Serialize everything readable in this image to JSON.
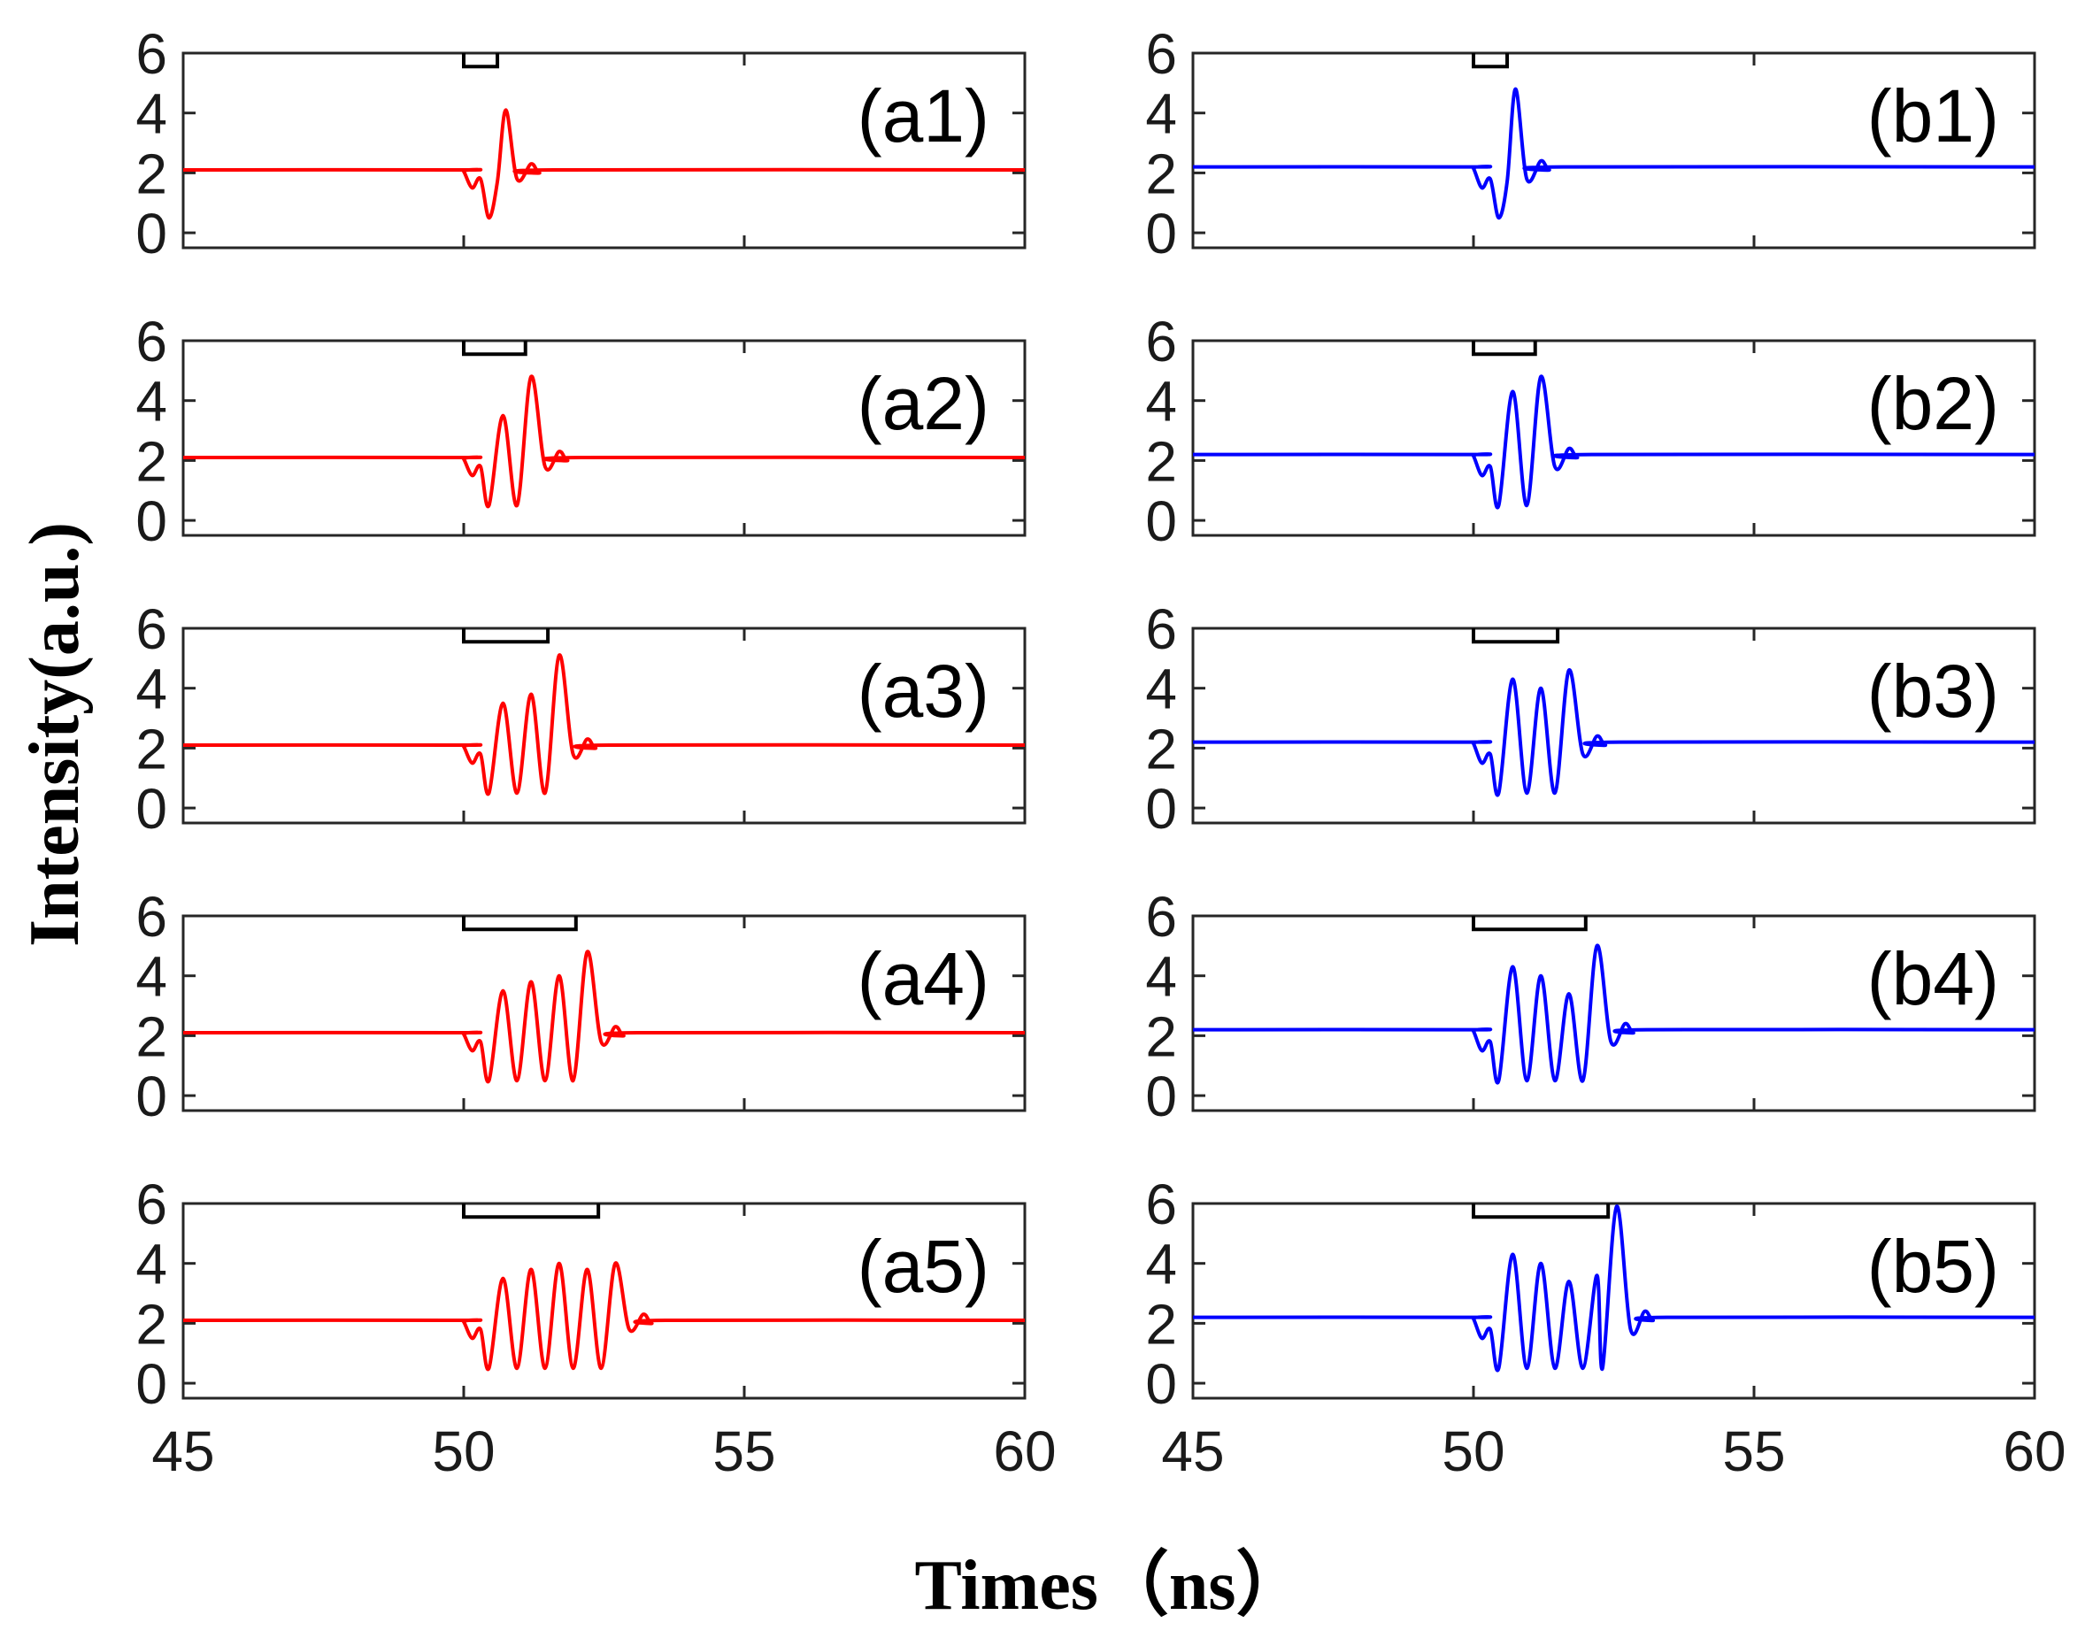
{
  "figure": {
    "ylabel": "Intensity(a.u.)",
    "xlabel": "Times（ns）",
    "colors": {
      "a": "#ff0000",
      "b": "#0000ff",
      "axis": "#262626",
      "marker": "#000000"
    }
  },
  "chart_data": [
    {
      "type": "line",
      "label": "(a1)",
      "series_color": "#ff0000",
      "xlim": [
        45,
        60
      ],
      "ylim": [
        -0.5,
        6
      ],
      "xticks": [
        "45",
        "50",
        "55",
        "60"
      ],
      "yticks": [
        "0",
        "2",
        "4",
        "6"
      ],
      "xlabel": "Times（ns）",
      "ylabel": "Intensity(a.u.)",
      "baseline": 2.1,
      "pulse_window": [
        50,
        50.6
      ],
      "peaks": [
        {
          "x": 50.15,
          "y": 1.5
        },
        {
          "x": 50.3,
          "y": 1.8
        },
        {
          "x": 50.45,
          "y": 0.5
        },
        {
          "x": 50.6,
          "y": 1.7
        },
        {
          "x": 50.75,
          "y": 4.1
        },
        {
          "x": 50.95,
          "y": 1.8
        },
        {
          "x": 51.2,
          "y": 2.3
        },
        {
          "x": 51.35,
          "y": 2.0
        },
        {
          "x": 51.6,
          "y": 2.1
        }
      ]
    },
    {
      "type": "line",
      "label": "(a2)",
      "series_color": "#ff0000",
      "xlim": [
        45,
        60
      ],
      "ylim": [
        -0.5,
        6
      ],
      "xticks": [
        "45",
        "50",
        "55",
        "60"
      ],
      "yticks": [
        "0",
        "2",
        "4",
        "6"
      ],
      "xlabel": "Times（ns）",
      "ylabel": "Intensity(a.u.)",
      "baseline": 2.1,
      "pulse_window": [
        50,
        51.1
      ],
      "peaks": [
        {
          "x": 50.15,
          "y": 1.5
        },
        {
          "x": 50.3,
          "y": 1.8
        },
        {
          "x": 50.45,
          "y": 0.5
        },
        {
          "x": 50.7,
          "y": 3.5
        },
        {
          "x": 50.95,
          "y": 0.5
        },
        {
          "x": 51.2,
          "y": 4.8
        },
        {
          "x": 51.45,
          "y": 1.8
        },
        {
          "x": 51.7,
          "y": 2.3
        },
        {
          "x": 51.85,
          "y": 2.0
        },
        {
          "x": 52.1,
          "y": 2.1
        }
      ]
    },
    {
      "type": "line",
      "label": "(a3)",
      "series_color": "#ff0000",
      "xlim": [
        45,
        60
      ],
      "ylim": [
        -0.5,
        6
      ],
      "xticks": [
        "45",
        "50",
        "55",
        "60"
      ],
      "yticks": [
        "0",
        "2",
        "4",
        "6"
      ],
      "xlabel": "Times（ns）",
      "ylabel": "Intensity(a.u.)",
      "baseline": 2.1,
      "pulse_window": [
        50,
        51.5
      ],
      "peaks": [
        {
          "x": 50.15,
          "y": 1.5
        },
        {
          "x": 50.3,
          "y": 1.8
        },
        {
          "x": 50.45,
          "y": 0.5
        },
        {
          "x": 50.7,
          "y": 3.5
        },
        {
          "x": 50.95,
          "y": 0.5
        },
        {
          "x": 51.2,
          "y": 3.8
        },
        {
          "x": 51.45,
          "y": 0.5
        },
        {
          "x": 51.7,
          "y": 5.1
        },
        {
          "x": 51.95,
          "y": 1.8
        },
        {
          "x": 52.2,
          "y": 2.3
        },
        {
          "x": 52.35,
          "y": 2.0
        },
        {
          "x": 52.6,
          "y": 2.1
        }
      ]
    },
    {
      "type": "line",
      "label": "(a4)",
      "series_color": "#ff0000",
      "xlim": [
        45,
        60
      ],
      "ylim": [
        -0.5,
        6
      ],
      "xticks": [
        "45",
        "50",
        "55",
        "60"
      ],
      "yticks": [
        "0",
        "2",
        "4",
        "6"
      ],
      "xlabel": "Times（ns）",
      "ylabel": "Intensity(a.u.)",
      "baseline": 2.1,
      "pulse_window": [
        50,
        52
      ],
      "peaks": [
        {
          "x": 50.15,
          "y": 1.5
        },
        {
          "x": 50.3,
          "y": 1.8
        },
        {
          "x": 50.45,
          "y": 0.5
        },
        {
          "x": 50.7,
          "y": 3.5
        },
        {
          "x": 50.95,
          "y": 0.5
        },
        {
          "x": 51.2,
          "y": 3.8
        },
        {
          "x": 51.45,
          "y": 0.5
        },
        {
          "x": 51.7,
          "y": 4.0
        },
        {
          "x": 51.95,
          "y": 0.5
        },
        {
          "x": 52.2,
          "y": 4.8
        },
        {
          "x": 52.45,
          "y": 1.8
        },
        {
          "x": 52.7,
          "y": 2.3
        },
        {
          "x": 52.85,
          "y": 2.0
        },
        {
          "x": 53.1,
          "y": 2.1
        }
      ]
    },
    {
      "type": "line",
      "label": "(a5)",
      "series_color": "#ff0000",
      "xlim": [
        45,
        60
      ],
      "ylim": [
        -0.5,
        6
      ],
      "xticks": [
        "45",
        "50",
        "55",
        "60"
      ],
      "yticks": [
        "0",
        "2",
        "4",
        "6"
      ],
      "xlabel": "Times（ns）",
      "ylabel": "Intensity(a.u.)",
      "baseline": 2.1,
      "pulse_window": [
        50,
        52.4
      ],
      "peaks": [
        {
          "x": 50.15,
          "y": 1.5
        },
        {
          "x": 50.3,
          "y": 1.8
        },
        {
          "x": 50.45,
          "y": 0.5
        },
        {
          "x": 50.7,
          "y": 3.5
        },
        {
          "x": 50.95,
          "y": 0.5
        },
        {
          "x": 51.2,
          "y": 3.8
        },
        {
          "x": 51.45,
          "y": 0.5
        },
        {
          "x": 51.7,
          "y": 4.0
        },
        {
          "x": 51.95,
          "y": 0.5
        },
        {
          "x": 52.2,
          "y": 3.8
        },
        {
          "x": 52.45,
          "y": 0.5
        },
        {
          "x": 52.7,
          "y": 4.0
        },
        {
          "x": 52.95,
          "y": 1.8
        },
        {
          "x": 53.2,
          "y": 2.3
        },
        {
          "x": 53.35,
          "y": 2.0
        },
        {
          "x": 53.6,
          "y": 2.1
        }
      ]
    },
    {
      "type": "line",
      "label": "(b1)",
      "series_color": "#0000ff",
      "xlim": [
        45,
        60
      ],
      "ylim": [
        -0.5,
        6
      ],
      "xticks": [
        "45",
        "50",
        "55",
        "60"
      ],
      "yticks": [
        "0",
        "2",
        "4",
        "6"
      ],
      "xlabel": "Times（ns）",
      "ylabel": "Intensity(a.u.)",
      "baseline": 2.2,
      "pulse_window": [
        50,
        50.6
      ],
      "peaks": [
        {
          "x": 50.15,
          "y": 1.5
        },
        {
          "x": 50.3,
          "y": 1.8
        },
        {
          "x": 50.45,
          "y": 0.5
        },
        {
          "x": 50.6,
          "y": 1.7
        },
        {
          "x": 50.75,
          "y": 4.8
        },
        {
          "x": 50.95,
          "y": 1.8
        },
        {
          "x": 51.2,
          "y": 2.4
        },
        {
          "x": 51.35,
          "y": 2.1
        },
        {
          "x": 51.6,
          "y": 2.2
        }
      ]
    },
    {
      "type": "line",
      "label": "(b2)",
      "series_color": "#0000ff",
      "xlim": [
        45,
        60
      ],
      "ylim": [
        -0.5,
        6
      ],
      "xticks": [
        "45",
        "50",
        "55",
        "60"
      ],
      "yticks": [
        "0",
        "2",
        "4",
        "6"
      ],
      "xlabel": "Times（ns）",
      "ylabel": "Intensity(a.u.)",
      "baseline": 2.2,
      "pulse_window": [
        50,
        51.1
      ],
      "peaks": [
        {
          "x": 50.15,
          "y": 1.5
        },
        {
          "x": 50.3,
          "y": 1.8
        },
        {
          "x": 50.45,
          "y": 0.5
        },
        {
          "x": 50.7,
          "y": 4.3
        },
        {
          "x": 50.95,
          "y": 0.5
        },
        {
          "x": 51.2,
          "y": 4.8
        },
        {
          "x": 51.45,
          "y": 1.8
        },
        {
          "x": 51.7,
          "y": 2.4
        },
        {
          "x": 51.85,
          "y": 2.1
        },
        {
          "x": 52.1,
          "y": 2.2
        }
      ]
    },
    {
      "type": "line",
      "label": "(b3)",
      "series_color": "#0000ff",
      "xlim": [
        45,
        60
      ],
      "ylim": [
        -0.5,
        6
      ],
      "xticks": [
        "45",
        "50",
        "55",
        "60"
      ],
      "yticks": [
        "0",
        "2",
        "4",
        "6"
      ],
      "xlabel": "Times（ns）",
      "ylabel": "Intensity(a.u.)",
      "baseline": 2.2,
      "pulse_window": [
        50,
        51.5
      ],
      "peaks": [
        {
          "x": 50.15,
          "y": 1.5
        },
        {
          "x": 50.3,
          "y": 1.8
        },
        {
          "x": 50.45,
          "y": 0.5
        },
        {
          "x": 50.7,
          "y": 4.3
        },
        {
          "x": 50.95,
          "y": 0.5
        },
        {
          "x": 51.2,
          "y": 4.0
        },
        {
          "x": 51.45,
          "y": 0.5
        },
        {
          "x": 51.7,
          "y": 4.6
        },
        {
          "x": 51.95,
          "y": 1.8
        },
        {
          "x": 52.2,
          "y": 2.4
        },
        {
          "x": 52.35,
          "y": 2.1
        },
        {
          "x": 52.6,
          "y": 2.2
        }
      ]
    },
    {
      "type": "line",
      "label": "(b4)",
      "series_color": "#0000ff",
      "xlim": [
        45,
        60
      ],
      "ylim": [
        -0.5,
        6
      ],
      "xticks": [
        "45",
        "50",
        "55",
        "60"
      ],
      "yticks": [
        "0",
        "2",
        "4",
        "6"
      ],
      "xlabel": "Times（ns）",
      "ylabel": "Intensity(a.u.)",
      "baseline": 2.2,
      "pulse_window": [
        50,
        52
      ],
      "peaks": [
        {
          "x": 50.15,
          "y": 1.5
        },
        {
          "x": 50.3,
          "y": 1.8
        },
        {
          "x": 50.45,
          "y": 0.5
        },
        {
          "x": 50.7,
          "y": 4.3
        },
        {
          "x": 50.95,
          "y": 0.5
        },
        {
          "x": 51.2,
          "y": 4.0
        },
        {
          "x": 51.45,
          "y": 0.5
        },
        {
          "x": 51.7,
          "y": 3.4
        },
        {
          "x": 51.95,
          "y": 0.5
        },
        {
          "x": 52.2,
          "y": 5.0
        },
        {
          "x": 52.45,
          "y": 1.8
        },
        {
          "x": 52.7,
          "y": 2.4
        },
        {
          "x": 52.85,
          "y": 2.1
        },
        {
          "x": 53.1,
          "y": 2.2
        }
      ]
    },
    {
      "type": "line",
      "label": "(b5)",
      "series_color": "#0000ff",
      "xlim": [
        45,
        60
      ],
      "ylim": [
        -0.5,
        6
      ],
      "xticks": [
        "45",
        "50",
        "55",
        "60"
      ],
      "yticks": [
        "0",
        "2",
        "4",
        "6"
      ],
      "xlabel": "Times（ns）",
      "ylabel": "Intensity(a.u.)",
      "baseline": 2.2,
      "pulse_window": [
        50,
        52.4
      ],
      "peaks": [
        {
          "x": 50.15,
          "y": 1.5
        },
        {
          "x": 50.3,
          "y": 1.8
        },
        {
          "x": 50.45,
          "y": 0.5
        },
        {
          "x": 50.7,
          "y": 4.3
        },
        {
          "x": 50.95,
          "y": 0.5
        },
        {
          "x": 51.2,
          "y": 4.0
        },
        {
          "x": 51.45,
          "y": 0.5
        },
        {
          "x": 51.7,
          "y": 3.4
        },
        {
          "x": 51.95,
          "y": 0.5
        },
        {
          "x": 52.2,
          "y": 3.6
        },
        {
          "x": 52.3,
          "y": 0.5
        },
        {
          "x": 52.55,
          "y": 5.9
        },
        {
          "x": 52.8,
          "y": 1.8
        },
        {
          "x": 53.05,
          "y": 2.4
        },
        {
          "x": 53.2,
          "y": 2.1
        },
        {
          "x": 53.45,
          "y": 2.2
        }
      ]
    }
  ]
}
